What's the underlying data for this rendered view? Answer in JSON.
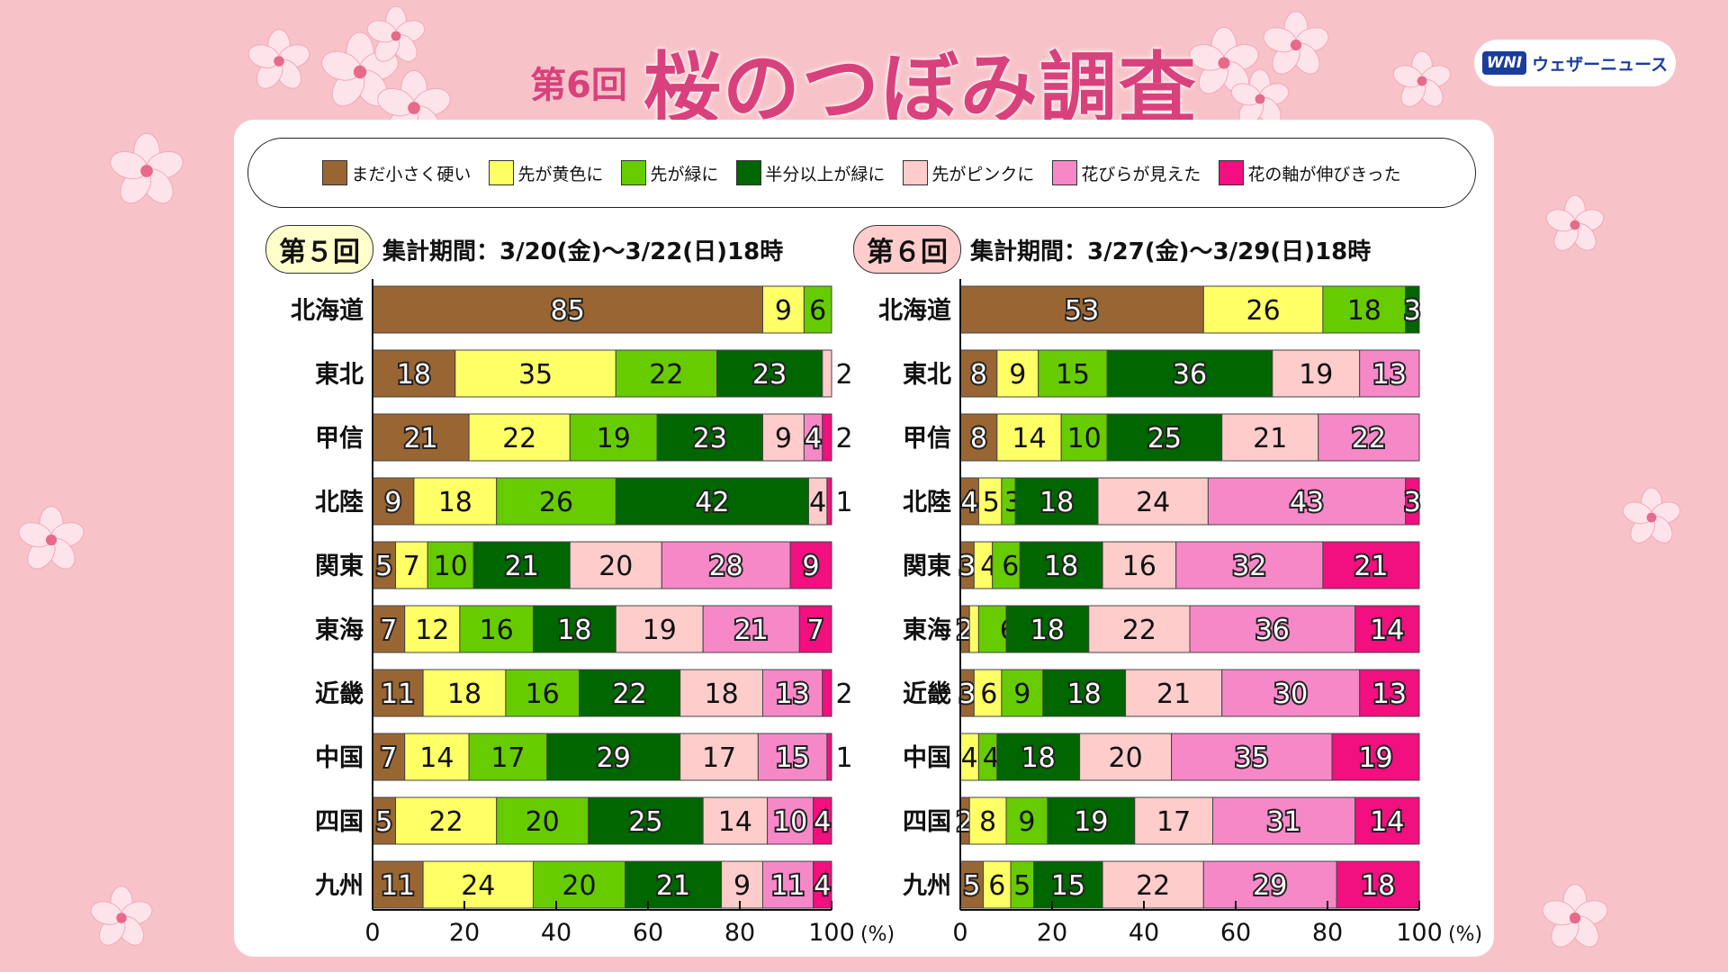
{
  "header": {
    "round": "第6回",
    "title": "桜のつぼみ調査",
    "logo_mark": "WNI",
    "logo_name": "ウェザーニュース"
  },
  "legend": [
    {
      "label": "まだ小さく硬い",
      "color": "#996633"
    },
    {
      "label": "先が黄色に",
      "color": "#ffff66"
    },
    {
      "label": "先が緑に",
      "color": "#66cc00"
    },
    {
      "label": "半分以上が緑に",
      "color": "#006600"
    },
    {
      "label": "先がピンクに",
      "color": "#ffcccc"
    },
    {
      "label": "花びらが見えた",
      "color": "#f788c8"
    },
    {
      "label": "花の軸が伸びきった",
      "color": "#f20f7f"
    }
  ],
  "panels": [
    {
      "badge": "第５回",
      "badge_color": "#ffffcc",
      "period": "集計期間：3/20(金)〜3/22(日)18時"
    },
    {
      "badge": "第６回",
      "badge_color": "#ffcccc",
      "period": "集計期間：3/27(金)〜3/29(日)18時"
    }
  ],
  "chart_data": [
    {
      "type": "bar",
      "orientation": "horizontal-stacked-100",
      "title": "第５回",
      "xlim": [
        0,
        100
      ],
      "xticks": [
        "0",
        "20",
        "40",
        "60",
        "80",
        "100"
      ],
      "xunit": "(%)",
      "categories": [
        "北海道",
        "東北",
        "甲信",
        "北陸",
        "関東",
        "東海",
        "近畿",
        "中国",
        "四国",
        "九州"
      ],
      "series": [
        {
          "name": "まだ小さく硬い",
          "values": [
            85,
            18,
            21,
            9,
            5,
            7,
            11,
            7,
            5,
            11
          ]
        },
        {
          "name": "先が黄色に",
          "values": [
            9,
            35,
            22,
            18,
            7,
            12,
            18,
            14,
            22,
            24
          ]
        },
        {
          "name": "先が緑に",
          "values": [
            6,
            22,
            19,
            26,
            10,
            16,
            16,
            17,
            20,
            20
          ]
        },
        {
          "name": "半分以上が緑に",
          "values": [
            0,
            23,
            23,
            42,
            21,
            18,
            22,
            29,
            25,
            21
          ]
        },
        {
          "name": "先がピンクに",
          "values": [
            0,
            2,
            9,
            4,
            20,
            19,
            18,
            17,
            14,
            9
          ]
        },
        {
          "name": "花びらが見えた",
          "values": [
            0,
            0,
            4,
            0,
            28,
            21,
            13,
            15,
            10,
            11
          ]
        },
        {
          "name": "花の軸が伸びきった",
          "values": [
            0,
            0,
            2,
            1,
            9,
            7,
            2,
            1,
            4,
            4
          ]
        }
      ]
    },
    {
      "type": "bar",
      "orientation": "horizontal-stacked-100",
      "title": "第６回",
      "xlim": [
        0,
        100
      ],
      "xticks": [
        "0",
        "20",
        "40",
        "60",
        "80",
        "100"
      ],
      "xunit": "(%)",
      "categories": [
        "北海道",
        "東北",
        "甲信",
        "北陸",
        "関東",
        "東海",
        "近畿",
        "中国",
        "四国",
        "九州"
      ],
      "series": [
        {
          "name": "まだ小さく硬い",
          "values": [
            53,
            8,
            8,
            4,
            3,
            2,
            3,
            0,
            2,
            5
          ]
        },
        {
          "name": "先が黄色に",
          "values": [
            26,
            9,
            14,
            5,
            4,
            2,
            6,
            4,
            8,
            6
          ]
        },
        {
          "name": "先が緑に",
          "values": [
            18,
            15,
            10,
            3,
            6,
            6,
            9,
            4,
            9,
            5
          ]
        },
        {
          "name": "半分以上が緑に",
          "values": [
            3,
            36,
            25,
            18,
            18,
            18,
            18,
            18,
            19,
            15
          ]
        },
        {
          "name": "先がピンクに",
          "values": [
            0,
            19,
            21,
            24,
            16,
            22,
            21,
            20,
            17,
            22
          ]
        },
        {
          "name": "花びらが見えた",
          "values": [
            0,
            13,
            22,
            43,
            32,
            36,
            30,
            35,
            31,
            29
          ]
        },
        {
          "name": "花の軸が伸びきった",
          "values": [
            0,
            0,
            0,
            3,
            21,
            14,
            13,
            19,
            14,
            18
          ]
        }
      ]
    }
  ]
}
